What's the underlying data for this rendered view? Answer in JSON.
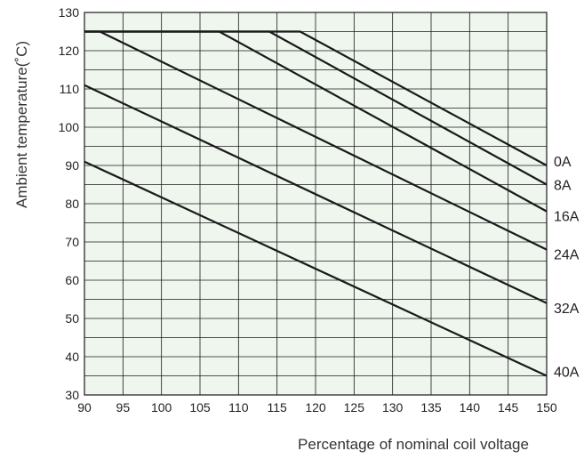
{
  "chart_data": {
    "type": "line",
    "title": "",
    "xlabel": "Percentage of nominal coil voltage",
    "ylabel": "Ambient temperature(˚C)",
    "xlim": [
      90,
      150
    ],
    "ylim": [
      30,
      130
    ],
    "x_major_ticks": [
      90,
      95,
      100,
      105,
      110,
      115,
      120,
      125,
      130,
      135,
      140,
      145,
      150
    ],
    "y_major_ticks": [
      30,
      40,
      50,
      60,
      70,
      80,
      90,
      100,
      110,
      120,
      130
    ],
    "x_tick_labels": [
      "90",
      "95",
      "100",
      "105",
      "110",
      "115",
      "120",
      "125",
      "130",
      "135",
      "140",
      "145",
      "150"
    ],
    "y_tick_labels": [
      "30",
      "40",
      "50",
      "60",
      "70",
      "80",
      "90",
      "100",
      "110",
      "120",
      "130"
    ],
    "grid": true,
    "background": "#eef6ee",
    "line_color": "#1a1a1a",
    "series": [
      {
        "name": "0A",
        "points": [
          [
            90,
            125
          ],
          [
            118,
            125
          ],
          [
            150,
            90
          ]
        ]
      },
      {
        "name": "8A",
        "points": [
          [
            90,
            125
          ],
          [
            114,
            125
          ],
          [
            150,
            85
          ]
        ]
      },
      {
        "name": "16A",
        "points": [
          [
            90,
            125
          ],
          [
            107.5,
            125
          ],
          [
            150,
            78
          ]
        ]
      },
      {
        "name": "24A",
        "points": [
          [
            90,
            125
          ],
          [
            92,
            125
          ],
          [
            150,
            68
          ]
        ]
      },
      {
        "name": "32A",
        "points": [
          [
            90,
            111
          ],
          [
            150,
            54
          ]
        ]
      },
      {
        "name": "40A",
        "points": [
          [
            90,
            91
          ],
          [
            150,
            35
          ]
        ]
      }
    ]
  }
}
